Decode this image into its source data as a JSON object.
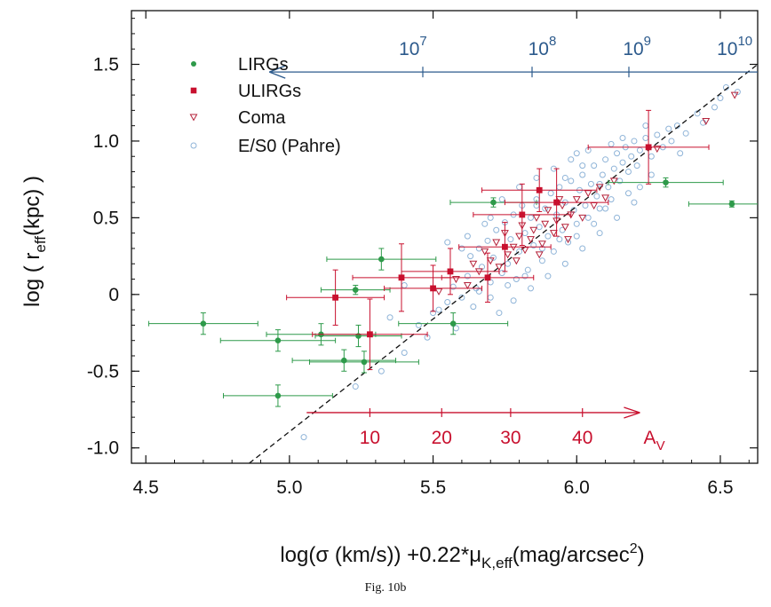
{
  "caption": "Fig. 10b",
  "chart_data": {
    "type": "scatter",
    "title": "",
    "xlabel_parts": {
      "pre": "log(σ (km/s)) +0.22*μ",
      "sub": "K,eff",
      "mid": "(mag/arcsec",
      "sup": "2",
      "post": ")"
    },
    "ylabel_parts": {
      "pre": "log ( r",
      "sub": "eff",
      "post": "(kpc) )"
    },
    "xlim": [
      4.45,
      6.63
    ],
    "ylim": [
      -1.1,
      1.85
    ],
    "x_ticks": [
      4.5,
      5.0,
      5.5,
      6.0,
      6.5
    ],
    "x_tick_labels": [
      "4.5",
      "5.0",
      "5.5",
      "6.0",
      "6.5"
    ],
    "y_ticks": [
      -1.0,
      -0.5,
      0,
      0.5,
      1.0,
      1.5
    ],
    "y_tick_labels": [
      "-1.0",
      "-0.5",
      "0",
      "0.5",
      "1.0",
      "1.5"
    ],
    "grid": false,
    "legend_position": "top-left",
    "colors": {
      "lirg": "#2e9a4a",
      "ulirg": "#c8102e",
      "coma": "#b5223a",
      "es0": "#8fb4d8",
      "blue_arrow": "#2c5a8c",
      "red_arrow": "#c8102e",
      "fit": "#111111"
    },
    "legend": [
      {
        "key": "lirg",
        "label": "LIRGs"
      },
      {
        "key": "ulirg",
        "label": "ULIRGs"
      },
      {
        "key": "coma",
        "label": "Coma"
      },
      {
        "key": "es0",
        "label": "E/S0 (Pahre)"
      }
    ],
    "fit_line": {
      "style": "dashed",
      "x": [
        4.86,
        6.63
      ],
      "y": [
        -1.1,
        1.5
      ]
    },
    "mass_arrow": {
      "direction": "left",
      "y": 1.45,
      "x_from": 6.63,
      "x_to": 4.93,
      "ticks": [
        {
          "x": 4.98,
          "base": "10",
          "exp": "7"
        },
        {
          "x": 5.72,
          "base": "10",
          "exp": "8"
        },
        {
          "x": 6.38,
          "base": "10",
          "exp": "9"
        },
        {
          "x": 7.0,
          "base": "10",
          "exp": "10"
        }
      ],
      "label_xs": [
        5.43,
        5.88,
        6.21,
        6.55
      ]
    },
    "extinction_arrow": {
      "direction": "right",
      "y": -0.77,
      "x_from": 5.06,
      "x_to": 6.22,
      "ticks": [
        {
          "x": 5.28,
          "label": "10"
        },
        {
          "x": 5.53,
          "label": "20"
        },
        {
          "x": 5.77,
          "label": "30"
        },
        {
          "x": 6.02,
          "label": "40"
        }
      ],
      "end_label": {
        "x": 6.27,
        "base": "A",
        "sub": "V"
      }
    },
    "series": [
      {
        "name": "LIRGs",
        "key": "lirg",
        "marker": "circle",
        "points": [
          {
            "x": 4.7,
            "y": -0.19,
            "xerr": 0.19,
            "yerr": 0.07
          },
          {
            "x": 4.96,
            "y": -0.3,
            "xerr": 0.2,
            "yerr": 0.07
          },
          {
            "x": 4.96,
            "y": -0.66,
            "xerr": 0.19,
            "yerr": 0.07
          },
          {
            "x": 5.11,
            "y": -0.26,
            "xerr": 0.19,
            "yerr": 0.07
          },
          {
            "x": 5.19,
            "y": -0.43,
            "xerr": 0.18,
            "yerr": 0.07
          },
          {
            "x": 5.23,
            "y": 0.03,
            "xerr": 0.12,
            "yerr": 0.03
          },
          {
            "x": 5.24,
            "y": -0.27,
            "xerr": 0.15,
            "yerr": 0.07
          },
          {
            "x": 5.26,
            "y": -0.44,
            "xerr": 0.19,
            "yerr": 0.07
          },
          {
            "x": 5.32,
            "y": 0.23,
            "xerr": 0.19,
            "yerr": 0.07
          },
          {
            "x": 5.57,
            "y": -0.19,
            "xerr": 0.19,
            "yerr": 0.07
          },
          {
            "x": 5.71,
            "y": 0.6,
            "xerr": 0.15,
            "yerr": 0.03
          },
          {
            "x": 6.31,
            "y": 0.73,
            "xerr": 0.2,
            "yerr": 0.03
          },
          {
            "x": 6.54,
            "y": 0.59,
            "xerr": 0.15,
            "yerr": 0.02
          }
        ]
      },
      {
        "name": "ULIRGs",
        "key": "ulirg",
        "marker": "square",
        "points": [
          {
            "x": 5.16,
            "y": -0.02,
            "xerr": 0.17,
            "yerr": 0.18
          },
          {
            "x": 5.28,
            "y": -0.26,
            "xerr": 0.2,
            "yerr": 0.23
          },
          {
            "x": 5.39,
            "y": 0.11,
            "xerr": 0.17,
            "yerr": 0.22
          },
          {
            "x": 5.5,
            "y": 0.04,
            "xerr": 0.17,
            "yerr": 0.15
          },
          {
            "x": 5.56,
            "y": 0.15,
            "xerr": 0.17,
            "yerr": 0.15
          },
          {
            "x": 5.69,
            "y": 0.11,
            "xerr": 0.16,
            "yerr": 0.16
          },
          {
            "x": 5.75,
            "y": 0.31,
            "xerr": 0.16,
            "yerr": 0.16
          },
          {
            "x": 5.81,
            "y": 0.52,
            "xerr": 0.17,
            "yerr": 0.2
          },
          {
            "x": 5.87,
            "y": 0.68,
            "xerr": 0.2,
            "yerr": 0.14
          },
          {
            "x": 5.93,
            "y": 0.6,
            "xerr": 0.18,
            "yerr": 0.22
          },
          {
            "x": 6.25,
            "y": 0.96,
            "xerr": 0.21,
            "yerr": 0.24
          }
        ]
      },
      {
        "name": "Coma",
        "key": "coma",
        "marker": "triangle-down",
        "points": [
          {
            "x": 5.52,
            "y": 0.02
          },
          {
            "x": 5.58,
            "y": 0.1
          },
          {
            "x": 5.62,
            "y": 0.06
          },
          {
            "x": 5.64,
            "y": 0.2
          },
          {
            "x": 5.66,
            "y": 0.15
          },
          {
            "x": 5.68,
            "y": 0.28
          },
          {
            "x": 5.7,
            "y": 0.22
          },
          {
            "x": 5.72,
            "y": 0.34
          },
          {
            "x": 5.73,
            "y": 0.18
          },
          {
            "x": 5.75,
            "y": 0.4
          },
          {
            "x": 5.76,
            "y": 0.26
          },
          {
            "x": 5.78,
            "y": 0.31
          },
          {
            "x": 5.8,
            "y": 0.38
          },
          {
            "x": 5.81,
            "y": 0.45
          },
          {
            "x": 5.82,
            "y": 0.29
          },
          {
            "x": 5.84,
            "y": 0.36
          },
          {
            "x": 5.85,
            "y": 0.42
          },
          {
            "x": 5.86,
            "y": 0.5
          },
          {
            "x": 5.88,
            "y": 0.33
          },
          {
            "x": 5.89,
            "y": 0.46
          },
          {
            "x": 5.9,
            "y": 0.55
          },
          {
            "x": 5.92,
            "y": 0.4
          },
          {
            "x": 5.93,
            "y": 0.48
          },
          {
            "x": 5.95,
            "y": 0.58
          },
          {
            "x": 5.96,
            "y": 0.44
          },
          {
            "x": 5.98,
            "y": 0.52
          },
          {
            "x": 6.0,
            "y": 0.62
          },
          {
            "x": 6.02,
            "y": 0.5
          },
          {
            "x": 6.04,
            "y": 0.66
          },
          {
            "x": 6.06,
            "y": 0.58
          },
          {
            "x": 6.08,
            "y": 0.7
          },
          {
            "x": 6.1,
            "y": 0.63
          },
          {
            "x": 6.13,
            "y": 0.74
          },
          {
            "x": 5.79,
            "y": 0.22
          },
          {
            "x": 5.87,
            "y": 0.26
          },
          {
            "x": 5.97,
            "y": 0.36
          },
          {
            "x": 6.28,
            "y": 0.95
          },
          {
            "x": 6.45,
            "y": 1.13
          },
          {
            "x": 6.55,
            "y": 1.3
          },
          {
            "x": 5.94,
            "y": 0.62
          }
        ]
      },
      {
        "name": "E/S0 (Pahre)",
        "key": "es0",
        "marker": "open-circle",
        "points": [
          {
            "x": 5.05,
            "y": -0.93
          },
          {
            "x": 5.23,
            "y": -0.6
          },
          {
            "x": 5.32,
            "y": -0.5
          },
          {
            "x": 5.4,
            "y": -0.38
          },
          {
            "x": 5.45,
            "y": -0.2
          },
          {
            "x": 5.48,
            "y": -0.28
          },
          {
            "x": 5.52,
            "y": -0.1
          },
          {
            "x": 5.55,
            "y": -0.05
          },
          {
            "x": 5.57,
            "y": 0.05
          },
          {
            "x": 5.6,
            "y": -0.02
          },
          {
            "x": 5.62,
            "y": 0.12
          },
          {
            "x": 5.63,
            "y": 0.25
          },
          {
            "x": 5.65,
            "y": 0.04
          },
          {
            "x": 5.66,
            "y": 0.3
          },
          {
            "x": 5.67,
            "y": 0.18
          },
          {
            "x": 5.69,
            "y": 0.35
          },
          {
            "x": 5.7,
            "y": 0.08
          },
          {
            "x": 5.71,
            "y": 0.24
          },
          {
            "x": 5.72,
            "y": 0.42
          },
          {
            "x": 5.74,
            "y": 0.14
          },
          {
            "x": 5.75,
            "y": 0.47
          },
          {
            "x": 5.76,
            "y": 0.2
          },
          {
            "x": 5.77,
            "y": 0.36
          },
          {
            "x": 5.78,
            "y": 0.52
          },
          {
            "x": 5.79,
            "y": 0.1
          },
          {
            "x": 5.8,
            "y": 0.28
          },
          {
            "x": 5.81,
            "y": 0.58
          },
          {
            "x": 5.82,
            "y": 0.4
          },
          {
            "x": 5.83,
            "y": 0.16
          },
          {
            "x": 5.84,
            "y": 0.5
          },
          {
            "x": 5.85,
            "y": 0.32
          },
          {
            "x": 5.86,
            "y": 0.62
          },
          {
            "x": 5.87,
            "y": 0.44
          },
          {
            "x": 5.88,
            "y": 0.22
          },
          {
            "x": 5.89,
            "y": 0.56
          },
          {
            "x": 5.9,
            "y": 0.38
          },
          {
            "x": 5.91,
            "y": 0.66
          },
          {
            "x": 5.92,
            "y": 0.28
          },
          {
            "x": 5.93,
            "y": 0.52
          },
          {
            "x": 5.94,
            "y": 0.7
          },
          {
            "x": 5.95,
            "y": 0.42
          },
          {
            "x": 5.96,
            "y": 0.6
          },
          {
            "x": 5.97,
            "y": 0.34
          },
          {
            "x": 5.98,
            "y": 0.74
          },
          {
            "x": 5.99,
            "y": 0.55
          },
          {
            "x": 6.0,
            "y": 0.46
          },
          {
            "x": 6.01,
            "y": 0.68
          },
          {
            "x": 6.02,
            "y": 0.78
          },
          {
            "x": 6.03,
            "y": 0.58
          },
          {
            "x": 6.04,
            "y": 0.5
          },
          {
            "x": 6.05,
            "y": 0.72
          },
          {
            "x": 6.06,
            "y": 0.84
          },
          {
            "x": 6.07,
            "y": 0.64
          },
          {
            "x": 6.08,
            "y": 0.56
          },
          {
            "x": 6.09,
            "y": 0.78
          },
          {
            "x": 6.1,
            "y": 0.88
          },
          {
            "x": 6.11,
            "y": 0.7
          },
          {
            "x": 6.12,
            "y": 0.62
          },
          {
            "x": 6.13,
            "y": 0.82
          },
          {
            "x": 6.14,
            "y": 0.92
          },
          {
            "x": 6.15,
            "y": 0.74
          },
          {
            "x": 6.16,
            "y": 0.86
          },
          {
            "x": 6.17,
            "y": 0.96
          },
          {
            "x": 6.18,
            "y": 0.8
          },
          {
            "x": 6.19,
            "y": 0.9
          },
          {
            "x": 6.2,
            "y": 1.0
          },
          {
            "x": 6.21,
            "y": 0.84
          },
          {
            "x": 6.22,
            "y": 0.94
          },
          {
            "x": 6.24,
            "y": 1.02
          },
          {
            "x": 6.26,
            "y": 0.9
          },
          {
            "x": 6.28,
            "y": 1.04
          },
          {
            "x": 6.3,
            "y": 0.96
          },
          {
            "x": 6.32,
            "y": 1.08
          },
          {
            "x": 6.35,
            "y": 1.1
          },
          {
            "x": 6.38,
            "y": 1.05
          },
          {
            "x": 6.42,
            "y": 1.18
          },
          {
            "x": 6.48,
            "y": 1.22
          },
          {
            "x": 6.52,
            "y": 1.35
          },
          {
            "x": 6.56,
            "y": 1.32
          },
          {
            "x": 5.73,
            "y": -0.12
          },
          {
            "x": 5.78,
            "y": -0.04
          },
          {
            "x": 5.84,
            "y": 0.04
          },
          {
            "x": 5.9,
            "y": 0.12
          },
          {
            "x": 5.96,
            "y": 0.2
          },
          {
            "x": 6.02,
            "y": 0.3
          },
          {
            "x": 6.08,
            "y": 0.4
          },
          {
            "x": 6.14,
            "y": 0.5
          },
          {
            "x": 6.2,
            "y": 0.6
          },
          {
            "x": 5.62,
            "y": 0.38
          },
          {
            "x": 5.68,
            "y": 0.46
          },
          {
            "x": 5.74,
            "y": 0.62
          },
          {
            "x": 5.8,
            "y": 0.7
          },
          {
            "x": 5.86,
            "y": 0.76
          },
          {
            "x": 5.92,
            "y": 0.82
          },
          {
            "x": 5.98,
            "y": 0.88
          },
          {
            "x": 6.04,
            "y": 0.94
          },
          {
            "x": 5.5,
            "y": -0.12
          },
          {
            "x": 5.58,
            "y": -0.22
          },
          {
            "x": 5.64,
            "y": -0.08
          },
          {
            "x": 5.7,
            "y": -0.02
          },
          {
            "x": 6.22,
            "y": 0.7
          },
          {
            "x": 6.26,
            "y": 0.78
          },
          {
            "x": 6.18,
            "y": 0.66
          },
          {
            "x": 6.1,
            "y": 0.56
          },
          {
            "x": 5.88,
            "y": 0.3
          },
          {
            "x": 5.94,
            "y": 0.36
          },
          {
            "x": 6.0,
            "y": 0.38
          },
          {
            "x": 6.06,
            "y": 0.46
          },
          {
            "x": 5.76,
            "y": 0.06
          },
          {
            "x": 5.82,
            "y": 0.12
          },
          {
            "x": 5.66,
            "y": 0.02
          },
          {
            "x": 5.6,
            "y": 0.3
          },
          {
            "x": 6.33,
            "y": 1.0
          },
          {
            "x": 6.36,
            "y": 0.92
          },
          {
            "x": 6.44,
            "y": 1.12
          },
          {
            "x": 6.5,
            "y": 1.28
          },
          {
            "x": 6.12,
            "y": 0.98
          },
          {
            "x": 6.16,
            "y": 1.02
          },
          {
            "x": 6.0,
            "y": 0.92
          },
          {
            "x": 6.24,
            "y": 1.1
          },
          {
            "x": 5.4,
            "y": 0.06
          },
          {
            "x": 5.35,
            "y": -0.15
          },
          {
            "x": 5.55,
            "y": 0.34
          },
          {
            "x": 5.7,
            "y": 0.5
          },
          {
            "x": 5.86,
            "y": 0.58
          },
          {
            "x": 5.96,
            "y": 0.76
          },
          {
            "x": 6.02,
            "y": 0.84
          },
          {
            "x": 6.08,
            "y": 0.72
          }
        ]
      }
    ]
  }
}
